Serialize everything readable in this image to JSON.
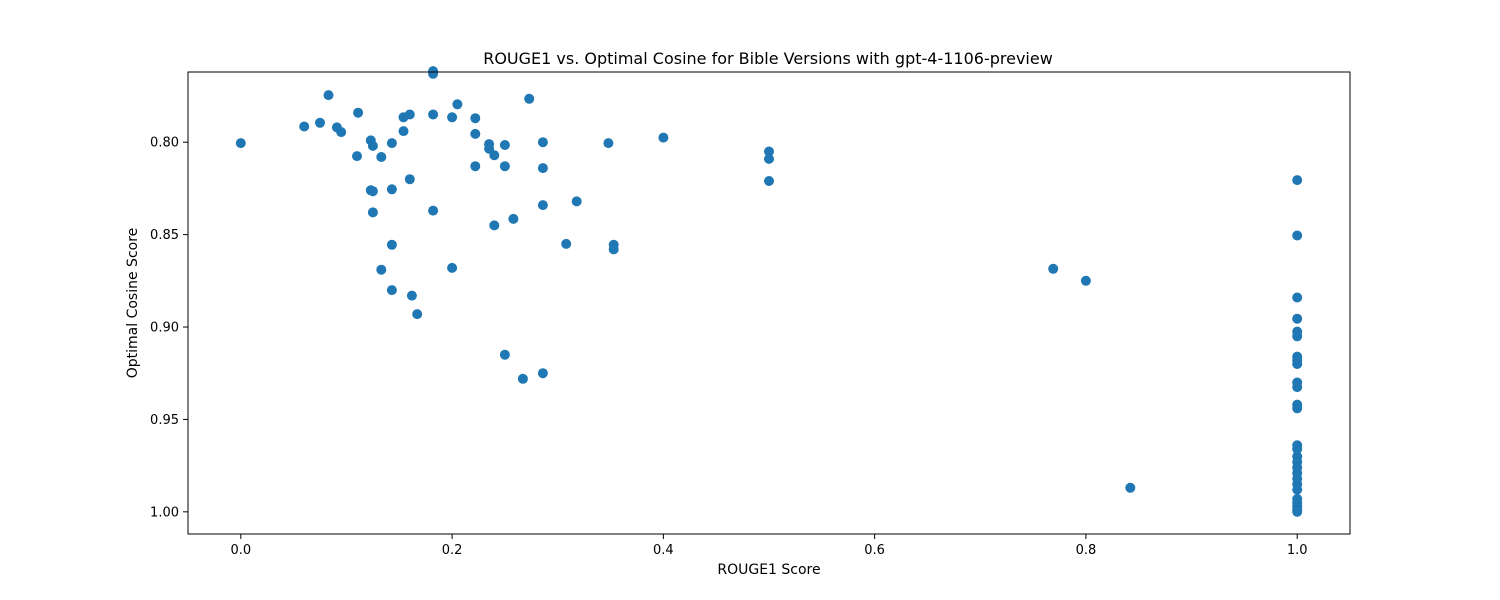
{
  "chart_data": {
    "type": "scatter",
    "title": "ROUGE1 vs. Optimal Cosine for Bible Versions with gpt-4-1106-preview",
    "xlabel": "ROUGE1 Score",
    "ylabel": "Optimal Cosine Score",
    "xlim": [
      -0.05,
      1.05
    ],
    "ylim": [
      0.762,
      1.012
    ],
    "y_inverted": true,
    "x_ticks": [
      0.0,
      0.2,
      0.4,
      0.6,
      0.8,
      1.0
    ],
    "x_tick_labels": [
      "0.0",
      "0.2",
      "0.4",
      "0.6",
      "0.8",
      "1.0"
    ],
    "y_ticks": [
      0.8,
      0.85,
      0.9,
      0.95,
      1.0
    ],
    "y_tick_labels": [
      "0.80",
      "0.85",
      "0.90",
      "0.95",
      "1.00"
    ],
    "grid": false,
    "marker_color": "#1f77b4",
    "points": [
      [
        0.0,
        0.8005
      ],
      [
        0.06,
        0.7915
      ],
      [
        0.075,
        0.7895
      ],
      [
        0.083,
        0.7745
      ],
      [
        0.091,
        0.792
      ],
      [
        0.095,
        0.7945
      ],
      [
        0.111,
        0.784
      ],
      [
        0.11,
        0.8075
      ],
      [
        0.123,
        0.799
      ],
      [
        0.125,
        0.802
      ],
      [
        0.133,
        0.808
      ],
      [
        0.123,
        0.826
      ],
      [
        0.125,
        0.8265
      ],
      [
        0.125,
        0.838
      ],
      [
        0.133,
        0.869
      ],
      [
        0.143,
        0.8005
      ],
      [
        0.143,
        0.8255
      ],
      [
        0.143,
        0.8555
      ],
      [
        0.143,
        0.88
      ],
      [
        0.154,
        0.7865
      ],
      [
        0.154,
        0.794
      ],
      [
        0.16,
        0.785
      ],
      [
        0.16,
        0.82
      ],
      [
        0.162,
        0.883
      ],
      [
        0.167,
        0.893
      ],
      [
        0.182,
        0.7615
      ],
      [
        0.182,
        0.763
      ],
      [
        0.182,
        0.785
      ],
      [
        0.182,
        0.837
      ],
      [
        0.2,
        0.7865
      ],
      [
        0.2,
        0.868
      ],
      [
        0.205,
        0.7795
      ],
      [
        0.222,
        0.787
      ],
      [
        0.222,
        0.7955
      ],
      [
        0.222,
        0.813
      ],
      [
        0.235,
        0.801
      ],
      [
        0.235,
        0.8035
      ],
      [
        0.24,
        0.807
      ],
      [
        0.24,
        0.845
      ],
      [
        0.25,
        0.8015
      ],
      [
        0.25,
        0.813
      ],
      [
        0.25,
        0.915
      ],
      [
        0.258,
        0.8415
      ],
      [
        0.267,
        0.928
      ],
      [
        0.273,
        0.7765
      ],
      [
        0.286,
        0.8
      ],
      [
        0.286,
        0.814
      ],
      [
        0.286,
        0.834
      ],
      [
        0.286,
        0.925
      ],
      [
        0.308,
        0.855
      ],
      [
        0.318,
        0.832
      ],
      [
        0.348,
        0.8005
      ],
      [
        0.353,
        0.8555
      ],
      [
        0.353,
        0.858
      ],
      [
        0.4,
        0.7975
      ],
      [
        0.5,
        0.805
      ],
      [
        0.5,
        0.809
      ],
      [
        0.5,
        0.821
      ],
      [
        0.769,
        0.8685
      ],
      [
        0.8,
        0.875
      ],
      [
        0.842,
        0.987
      ],
      [
        1.0,
        0.8205
      ],
      [
        1.0,
        0.8505
      ],
      [
        1.0,
        0.884
      ],
      [
        1.0,
        0.8955
      ],
      [
        1.0,
        0.9025
      ],
      [
        1.0,
        0.905
      ],
      [
        1.0,
        0.916
      ],
      [
        1.0,
        0.918
      ],
      [
        1.0,
        0.92
      ],
      [
        1.0,
        0.93
      ],
      [
        1.0,
        0.9325
      ],
      [
        1.0,
        0.942
      ],
      [
        1.0,
        0.944
      ],
      [
        1.0,
        0.964
      ],
      [
        1.0,
        0.966
      ],
      [
        1.0,
        0.97
      ],
      [
        1.0,
        0.973
      ],
      [
        1.0,
        0.976
      ],
      [
        1.0,
        0.979
      ],
      [
        1.0,
        0.982
      ],
      [
        1.0,
        0.985
      ],
      [
        1.0,
        0.988
      ],
      [
        1.0,
        0.993
      ],
      [
        1.0,
        0.995
      ],
      [
        1.0,
        0.997
      ],
      [
        1.0,
        0.999
      ],
      [
        1.0,
        1.0
      ]
    ]
  }
}
